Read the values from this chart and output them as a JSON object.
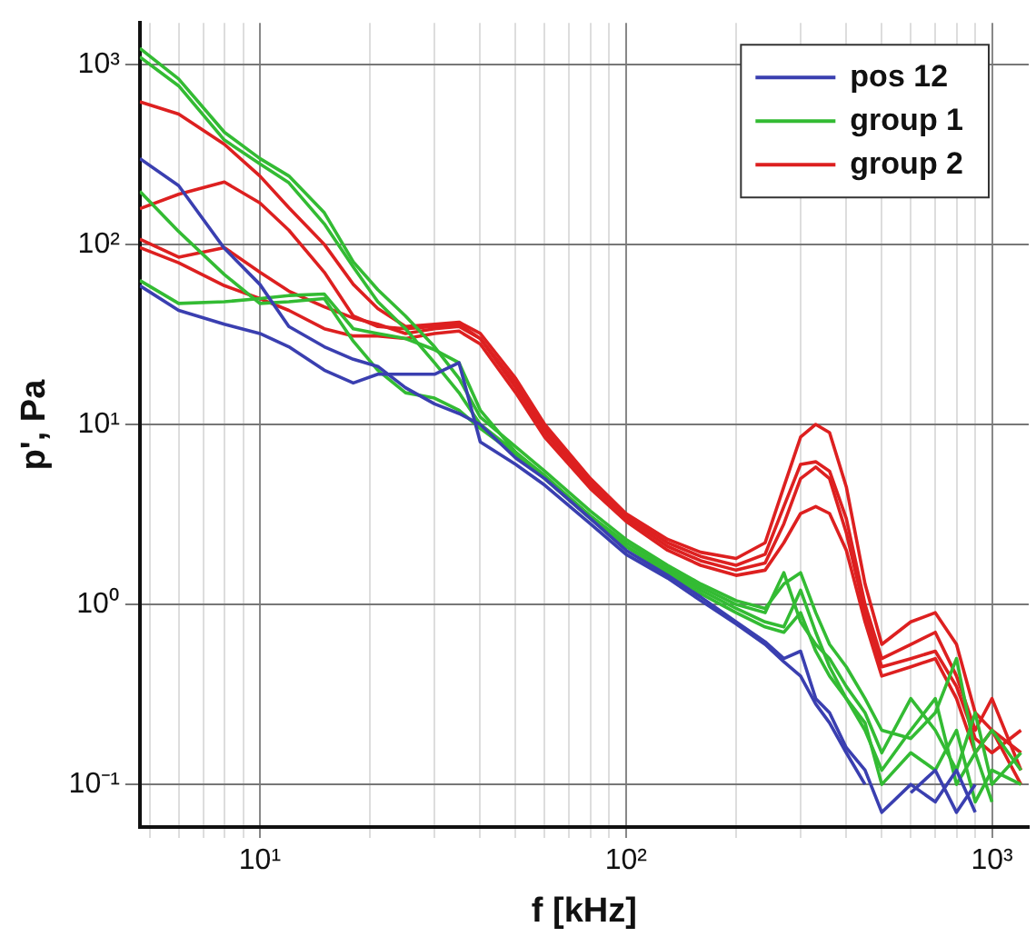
{
  "chart_data": {
    "type": "line",
    "xlabel": "f [kHz]",
    "ylabel": "p', Pa",
    "log": "xy",
    "grid": true,
    "legend": "top right",
    "marker": "none",
    "line_style": "solid",
    "x": [
      4.7,
      6,
      8,
      10,
      12,
      15,
      18,
      21,
      25,
      30,
      35,
      40,
      50,
      60,
      80,
      100,
      130,
      160,
      200,
      240,
      270,
      300,
      330,
      360,
      400,
      450,
      500,
      600,
      700,
      800,
      900,
      1000,
      1200
    ],
    "xlim": [
      4.7,
      1260
    ],
    "ylim": [
      0.058,
      1700
    ],
    "xticks": [
      {
        "value": 5,
        "label": null
      },
      {
        "value": 6,
        "label": null
      },
      {
        "value": 7,
        "label": null
      },
      {
        "value": 8,
        "label": null
      },
      {
        "value": 9,
        "label": null
      },
      {
        "value": 10,
        "label": "10¹"
      },
      {
        "value": 20,
        "label": null
      },
      {
        "value": 30,
        "label": null
      },
      {
        "value": 40,
        "label": null
      },
      {
        "value": 50,
        "label": null
      },
      {
        "value": 60,
        "label": null
      },
      {
        "value": 70,
        "label": null
      },
      {
        "value": 80,
        "label": null
      },
      {
        "value": 90,
        "label": null
      },
      {
        "value": 100,
        "label": "10²"
      },
      {
        "value": 200,
        "label": null
      },
      {
        "value": 300,
        "label": null
      },
      {
        "value": 400,
        "label": null
      },
      {
        "value": 500,
        "label": null
      },
      {
        "value": 600,
        "label": null
      },
      {
        "value": 700,
        "label": null
      },
      {
        "value": 800,
        "label": null
      },
      {
        "value": 900,
        "label": null
      },
      {
        "value": 1000,
        "label": "10³"
      }
    ],
    "yticks": [
      {
        "value": 0.1,
        "label": "10⁻¹"
      },
      {
        "value": 1,
        "label": "10⁰"
      },
      {
        "value": 10,
        "label": "10¹"
      },
      {
        "value": 100,
        "label": "10²"
      },
      {
        "value": 1000,
        "label": "10³"
      }
    ],
    "series": [
      {
        "name": "pos 12",
        "color": "#3a3fb0",
        "values": [
          300,
          212,
          95,
          60,
          35,
          27,
          23,
          21,
          16,
          13,
          11.5,
          10,
          6.5,
          5,
          3,
          2,
          1.45,
          1.1,
          0.8,
          0.62,
          0.5,
          0.55,
          0.3,
          0.25,
          0.16,
          0.12,
          0.07,
          0.1,
          0.08,
          0.12,
          0.07,
          null,
          null
        ]
      },
      {
        "color": "#3a3fb0",
        "values": [
          59,
          43,
          36,
          32,
          27,
          20,
          17,
          19,
          19,
          19,
          22,
          8,
          6,
          4.6,
          2.8,
          1.9,
          1.4,
          1.05,
          0.78,
          0.6,
          0.48,
          0.4,
          0.28,
          0.22,
          0.15,
          0.1,
          null,
          0.09,
          0.12,
          0.07,
          0.1,
          null,
          null
        ]
      },
      {
        "name": "group 1",
        "color": "#33bb33",
        "values": [
          1230,
          830,
          420,
          300,
          240,
          150,
          80,
          56,
          40,
          27,
          18,
          11,
          7.5,
          5.5,
          3.3,
          2.3,
          1.65,
          1.3,
          1.05,
          0.95,
          1.3,
          1.5,
          0.9,
          0.6,
          0.45,
          0.3,
          0.2,
          0.18,
          0.25,
          0.5,
          0.15,
          0.2,
          0.12
        ]
      },
      {
        "color": "#33bb33",
        "values": [
          1100,
          760,
          380,
          280,
          220,
          130,
          75,
          48,
          34,
          22,
          15,
          10,
          7,
          5.2,
          3.1,
          2.2,
          1.6,
          1.25,
          1,
          0.9,
          1.5,
          0.8,
          0.6,
          0.5,
          0.35,
          0.25,
          0.15,
          0.3,
          0.2,
          0.12,
          0.25,
          0.1,
          0.15
        ]
      },
      {
        "color": "#33bb33",
        "values": [
          197,
          118,
          68,
          47,
          48,
          50,
          29,
          20,
          15,
          14,
          12,
          9.5,
          6.8,
          5,
          3,
          2.1,
          1.5,
          1.15,
          0.9,
          0.75,
          0.7,
          0.9,
          0.55,
          0.4,
          0.3,
          0.2,
          0.12,
          0.2,
          0.3,
          0.1,
          0.15,
          0.08,
          null
        ]
      },
      {
        "color": "#33bb33",
        "values": [
          63,
          47,
          48,
          50,
          52,
          53,
          34,
          32,
          30,
          26,
          22,
          12,
          7,
          5.1,
          3.1,
          2.1,
          1.55,
          1.2,
          0.95,
          0.8,
          0.75,
          1.2,
          0.7,
          0.45,
          0.3,
          0.22,
          0.1,
          0.15,
          0.12,
          0.2,
          0.08,
          0.12,
          0.1
        ]
      },
      {
        "name": "group 2",
        "color": "#dd2020",
        "values": [
          620,
          530,
          360,
          240,
          160,
          100,
          60,
          44,
          35,
          36,
          37,
          32,
          18,
          10,
          5,
          3.2,
          2.3,
          1.95,
          1.8,
          2.2,
          4.5,
          8.5,
          10,
          9,
          4.5,
          1.3,
          0.6,
          0.8,
          0.9,
          0.6,
          0.25,
          0.2,
          0.15
        ]
      },
      {
        "color": "#dd2020",
        "values": [
          158,
          190,
          222,
          170,
          120,
          70,
          40,
          35,
          34,
          35,
          36,
          30,
          17,
          9.5,
          4.8,
          3.1,
          2.2,
          1.85,
          1.65,
          1.9,
          3.5,
          6,
          6.2,
          5.5,
          3,
          1,
          0.5,
          0.6,
          0.7,
          0.4,
          0.2,
          0.3,
          0.12
        ]
      },
      {
        "color": "#dd2020",
        "values": [
          107,
          85,
          96,
          70,
          55,
          45,
          39,
          36,
          32,
          34,
          35,
          30,
          16,
          9,
          4.6,
          3,
          2.1,
          1.75,
          1.55,
          1.7,
          2.8,
          5,
          5.8,
          5,
          2.5,
          0.9,
          0.45,
          0.5,
          0.55,
          0.35,
          0.18,
          0.15,
          0.2
        ]
      },
      {
        "color": "#dd2020",
        "values": [
          96,
          79,
          59,
          50,
          43,
          34,
          31,
          31,
          30,
          32,
          33,
          28,
          15,
          8.5,
          4.4,
          2.9,
          2,
          1.65,
          1.45,
          1.55,
          2.2,
          3.2,
          3.5,
          3.2,
          2,
          0.8,
          0.4,
          0.45,
          0.5,
          0.3,
          0.15,
          0.2,
          0.1
        ]
      }
    ]
  }
}
